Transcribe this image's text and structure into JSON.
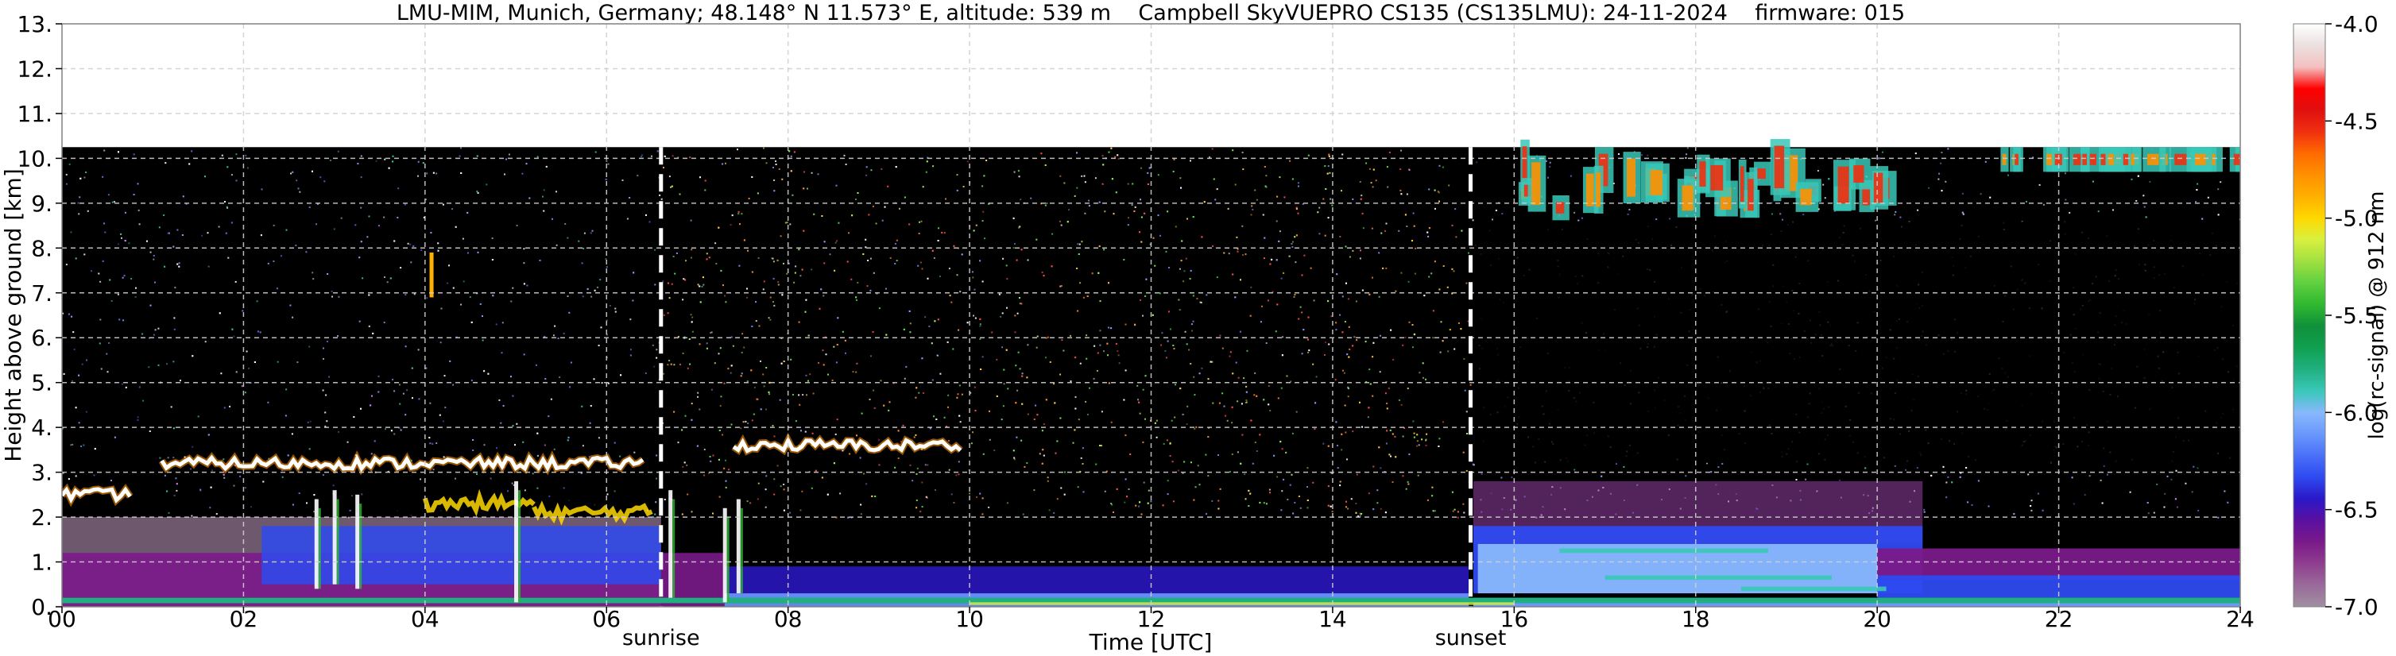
{
  "chart_data": {
    "type": "heatmap",
    "title": "LMU-MIM, Munich, Germany; 48.148° N 11.573° E, altitude: 539 m    Campbell SkyVUEPRO CS135 (CS135LMU): 24-11-2024    firmware: 015",
    "xlabel": "Time [UTC]",
    "ylabel": "Height above ground [km]",
    "xlim": [
      0,
      24
    ],
    "ylim": [
      0,
      13
    ],
    "data_top_km": 10.25,
    "xticks": [
      "00",
      "02",
      "04",
      "06",
      "08",
      "10",
      "12",
      "14",
      "16",
      "18",
      "20",
      "22",
      "24"
    ],
    "yticks": [
      "0.",
      "1.",
      "2.",
      "3.",
      "4.",
      "5.",
      "6.",
      "7.",
      "8.",
      "9.",
      "10.",
      "11.",
      "12.",
      "13."
    ],
    "grid": true,
    "markers": [
      {
        "label": "sunrise",
        "time": 6.6
      },
      {
        "label": "sunset",
        "time": 15.52
      }
    ],
    "colorbar": {
      "label": "log(rc-signal) @ 912 nm",
      "range": [
        -7.0,
        -4.0
      ],
      "ticks": [
        "-4.0",
        "-4.5",
        "-5.0",
        "-5.5",
        "-6.0",
        "-6.5",
        "-7.0"
      ],
      "colors": [
        "#a090a0",
        "#9a6a9a",
        "#8e3e8e",
        "#7a1a8a",
        "#5a10a0",
        "#2a18c8",
        "#2e4af0",
        "#4a70f8",
        "#6a98fc",
        "#88b8fc",
        "#38c8b8",
        "#20b080",
        "#10a050",
        "#10903a",
        "#30b830",
        "#60d040",
        "#a0e040",
        "#d8f040",
        "#ffd800",
        "#ffb000",
        "#ff9000",
        "#ff6a00",
        "#f03010",
        "#e01010",
        "#ff0000",
        "#f4c0c0",
        "#ece0e0",
        "#ffffff"
      ]
    },
    "features": [
      {
        "name": "cloud layer",
        "start": 0.0,
        "end": 0.75,
        "height_km": 2.5
      },
      {
        "name": "cloud layer",
        "start": 1.1,
        "end": 6.4,
        "height_km": 3.2
      },
      {
        "name": "cloud layer",
        "start": 7.4,
        "end": 9.9,
        "height_km": 3.6
      },
      {
        "name": "cirrus",
        "start": 15.9,
        "end": 24.0,
        "height_km": 9.3
      },
      {
        "name": "boundary layer",
        "start": 15.55,
        "end": 24.0,
        "height_km": 1.4
      }
    ]
  }
}
